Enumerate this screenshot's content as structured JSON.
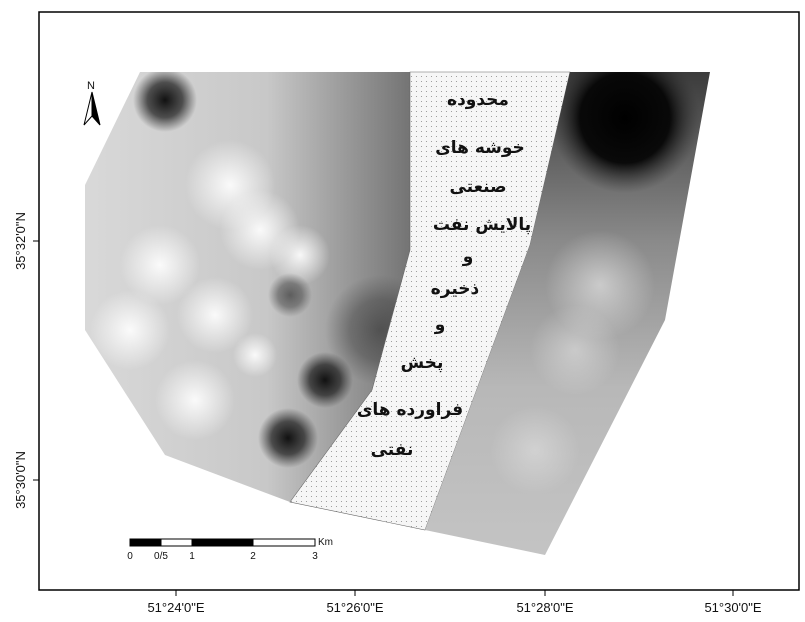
{
  "map": {
    "x_ticks": [
      "51°24'0\"E",
      "51°26'0\"E",
      "51°28'0\"E",
      "51°30'0\"E"
    ],
    "y_ticks": [
      "35°32'0\"N",
      "35°30'0\"N"
    ],
    "north_label": "N",
    "scale_bar": {
      "labels": [
        "0",
        "0/5",
        "1",
        "2",
        "3"
      ],
      "unit": "Km"
    },
    "zone_label_lines": [
      "محدوده",
      "خوشه های",
      "صنعتی",
      "پالایش نفت",
      "و",
      "ذخیره",
      "و",
      "پخش",
      "فراورده های",
      "نفتی"
    ],
    "colors": {
      "frame": "#000000",
      "zone_fill": "#f4f4f4",
      "zone_dots": "#8a8a8a",
      "raster_light": "#e6e6e6",
      "raster_dark": "#111111"
    }
  }
}
